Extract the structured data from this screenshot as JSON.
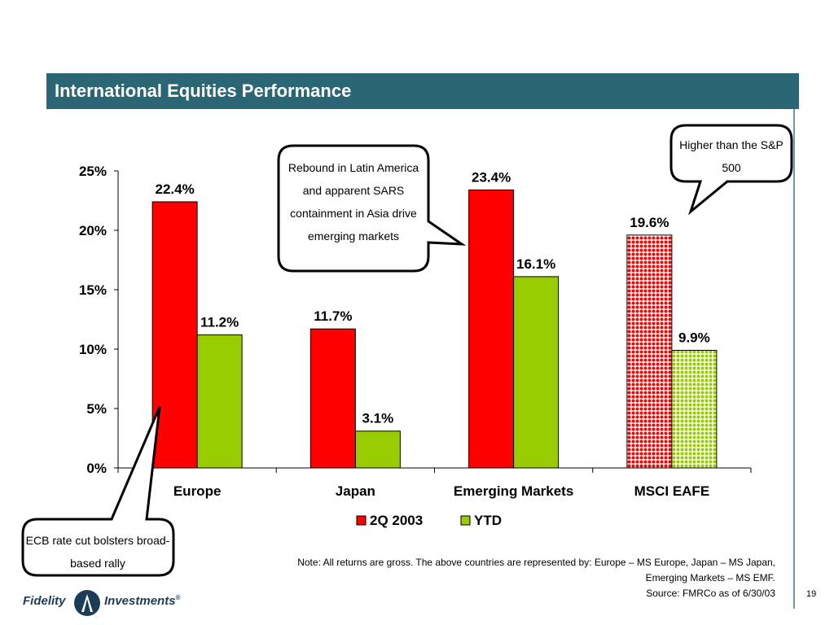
{
  "slide": {
    "title": "International Equities Performance",
    "page_number": "19"
  },
  "callouts": {
    "latin": "Rebound in Latin America and apparent SARS containment in Asia drive emerging markets",
    "sp500": "Higher than the S&P 500",
    "ecb": "ECB rate cut bolsters broad-based rally"
  },
  "note": {
    "line1": "Note:  All returns are gross.  The above countries are represented by: Europe – MS Europe, Japan – MS Japan,",
    "line2": "Emerging Markets – MS EMF.",
    "line3": "Source: FMRCo as of 6/30/03"
  },
  "logo": {
    "word1": "Fidelity",
    "word2": "Investments",
    "mark": "®"
  },
  "chart_data": {
    "type": "bar",
    "categories": [
      "Europe",
      "Japan",
      "Emerging Markets",
      "MSCI EAFE"
    ],
    "series": [
      {
        "name": "2Q 2003",
        "values": [
          22.4,
          11.7,
          23.4,
          19.6
        ],
        "labels": [
          "22.4%",
          "11.7%",
          "23.4%",
          "19.6%"
        ],
        "color": "#ff0000"
      },
      {
        "name": "YTD",
        "values": [
          11.2,
          3.1,
          16.1,
          9.9
        ],
        "labels": [
          "11.2%",
          "3.1%",
          "16.1%",
          "9.9%"
        ],
        "color": "#99cc00"
      }
    ],
    "patterned_category": "MSCI EAFE",
    "ylim": [
      0,
      25
    ],
    "yticks": [
      "0%",
      "5%",
      "10%",
      "15%",
      "20%",
      "25%"
    ],
    "ytick_values": [
      0,
      5,
      10,
      15,
      20,
      25
    ],
    "legend_position": "bottom",
    "grid": false
  }
}
